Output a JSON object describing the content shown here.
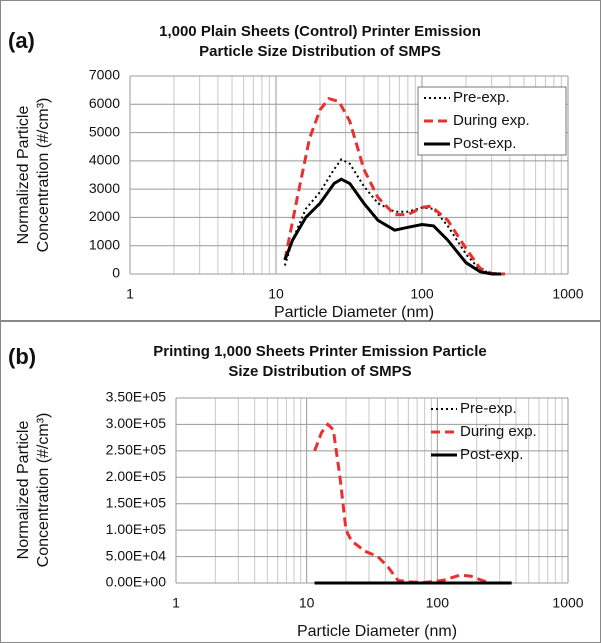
{
  "chart_data": [
    {
      "type": "line",
      "panel_label": "(a)",
      "title": [
        "1,000 Plain Sheets (Control) Printer Emission",
        "Particle Size Distribution of SMPS"
      ],
      "x_label": "Particle Diameter (nm)",
      "y_label": [
        "Normalized Particle",
        "Concentration (#/cm³)"
      ],
      "xscale": "log",
      "xlim": [
        1,
        1000
      ],
      "xticks": [
        1,
        10,
        100,
        1000
      ],
      "ylim": [
        0,
        7000
      ],
      "yticks": [
        0,
        1000,
        2000,
        3000,
        4000,
        5000,
        6000,
        7000
      ],
      "grid": true,
      "legend": "upper right",
      "legend_box": true,
      "series": [
        {
          "name": "Pre-exp.",
          "color": "#000000",
          "style": "dotted",
          "x": [
            11.5,
            13,
            16,
            20,
            25,
            28,
            32,
            40,
            50,
            65,
            80,
            100,
            120,
            150,
            200,
            250,
            300,
            350
          ],
          "values": [
            300,
            1200,
            2300,
            2900,
            3700,
            4050,
            3900,
            3100,
            2500,
            2200,
            2200,
            2350,
            2300,
            1700,
            700,
            150,
            20,
            0
          ]
        },
        {
          "name": "During exp.",
          "color": "#e8312f",
          "style": "dashed",
          "x": [
            11.5,
            14,
            17,
            20,
            23,
            27,
            32,
            40,
            50,
            65,
            80,
            100,
            115,
            150,
            200,
            250,
            300,
            370
          ],
          "values": [
            500,
            2700,
            4800,
            5800,
            6200,
            6100,
            5400,
            3700,
            2700,
            2100,
            2100,
            2350,
            2400,
            1900,
            900,
            200,
            20,
            0
          ]
        },
        {
          "name": "Post-exp.",
          "color": "#000000",
          "style": "solid",
          "x": [
            11.5,
            13,
            16,
            20,
            25,
            28,
            32,
            40,
            50,
            65,
            80,
            100,
            120,
            150,
            200,
            250,
            300,
            350
          ],
          "values": [
            500,
            1200,
            2000,
            2500,
            3200,
            3350,
            3200,
            2500,
            1900,
            1550,
            1650,
            1750,
            1700,
            1200,
            400,
            80,
            0,
            0
          ]
        }
      ]
    },
    {
      "type": "line",
      "panel_label": "(b)",
      "title": [
        "Printing 1,000 Sheets Printer Emission Particle",
        "Size Distribution of SMPS"
      ],
      "x_label": "Particle Diameter (nm)",
      "y_label": [
        "Normalized Particle",
        "Concentration (#/cm³)"
      ],
      "xscale": "log",
      "xlim": [
        1,
        1000
      ],
      "xticks": [
        1,
        10,
        100,
        1000
      ],
      "ylim": [
        0,
        350000
      ],
      "yticks": [
        {
          "value": 0,
          "label": "0.00E+00"
        },
        {
          "value": 50000,
          "label": "5.00E+04"
        },
        {
          "value": 100000,
          "label": "1.00E+05"
        },
        {
          "value": 150000,
          "label": "1.50E+05"
        },
        {
          "value": 200000,
          "label": "2.00E+05"
        },
        {
          "value": 250000,
          "label": "2.50E+05"
        },
        {
          "value": 300000,
          "label": "3.00E+05"
        },
        {
          "value": 350000,
          "label": "3.50E+05"
        }
      ],
      "grid": true,
      "legend": "upper right",
      "legend_box": false,
      "series": [
        {
          "name": "Pre-exp.",
          "color": "#000000",
          "style": "dotted",
          "x": [
            11.5,
            20,
            50,
            100,
            200,
            370
          ],
          "values": [
            0,
            0,
            0,
            0,
            0,
            0
          ]
        },
        {
          "name": "During exp.",
          "color": "#e8312f",
          "style": "dashed",
          "x": [
            11.5,
            13,
            14.5,
            16,
            18,
            20,
            22,
            28,
            35,
            42,
            50,
            60,
            80,
            110,
            150,
            180,
            220,
            250
          ],
          "values": [
            250000,
            285000,
            300000,
            290000,
            200000,
            100000,
            80000,
            60000,
            50000,
            30000,
            5000,
            2000,
            1000,
            5000,
            15000,
            13000,
            5000,
            1000
          ]
        },
        {
          "name": "Post-exp.",
          "color": "#000000",
          "style": "solid",
          "x": [
            11.5,
            20,
            50,
            100,
            200,
            370
          ],
          "values": [
            0,
            0,
            0,
            0,
            0,
            0
          ]
        }
      ]
    }
  ]
}
